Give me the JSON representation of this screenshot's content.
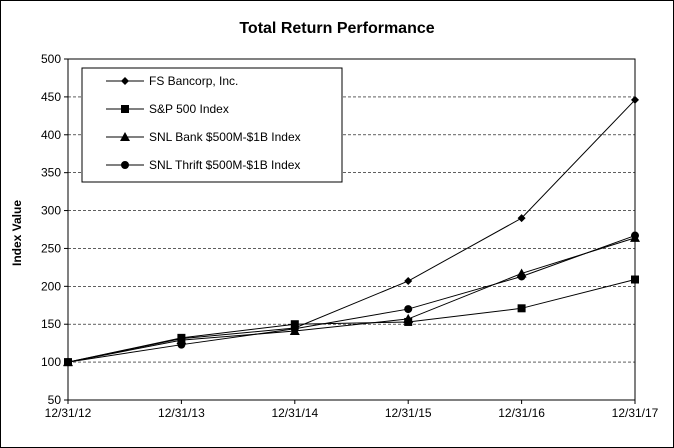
{
  "chart_data": {
    "type": "line",
    "title": "Total Return Performance",
    "xlabel": "",
    "ylabel": "Index Value",
    "categories": [
      "12/31/12",
      "12/31/13",
      "12/31/14",
      "12/31/15",
      "12/31/16",
      "12/31/17"
    ],
    "ylim": [
      50,
      500
    ],
    "yticks": [
      50,
      100,
      150,
      200,
      250,
      300,
      350,
      400,
      450,
      500
    ],
    "grid": true,
    "legend_position": "top-left",
    "series": [
      {
        "name": "FS Bancorp, Inc.",
        "marker": "diamond",
        "values": [
          100,
          131,
          145,
          207,
          290,
          446
        ]
      },
      {
        "name": "S&P 500 Index",
        "marker": "square",
        "values": [
          100,
          132,
          150,
          153,
          171,
          209
        ]
      },
      {
        "name": "SNL Bank $500M-$1B Index",
        "marker": "triangle",
        "values": [
          100,
          129,
          141,
          157,
          217,
          264
        ]
      },
      {
        "name": "SNL Thrift $500M-$1B Index",
        "marker": "circle",
        "values": [
          100,
          123,
          144,
          170,
          213,
          267
        ]
      }
    ]
  }
}
